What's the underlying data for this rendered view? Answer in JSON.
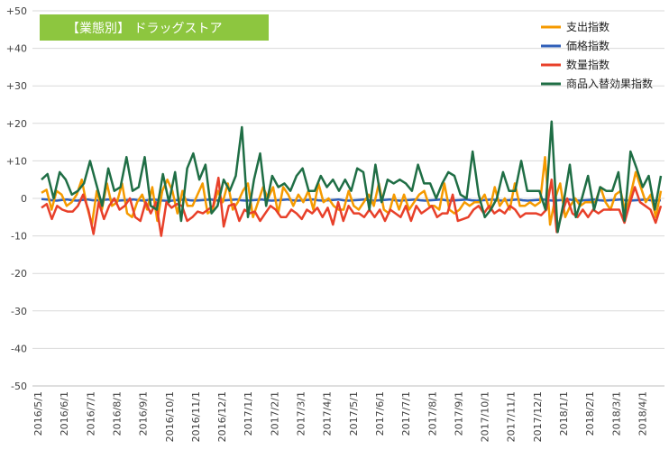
{
  "chart_data": {
    "type": "line",
    "title": "【業態別】 ドラッグストア",
    "ylim": [
      -50,
      50
    ],
    "y_ticks": [
      "+50",
      "+40",
      "+30",
      "+20",
      "+10",
      "0",
      "-10",
      "-20",
      "-30",
      "-40",
      "-50"
    ],
    "y_tick_values": [
      50,
      40,
      30,
      20,
      10,
      0,
      -10,
      -20,
      -30,
      -40,
      -50
    ],
    "x_tick_labels": [
      "2016/5/1",
      "2016/6/1",
      "2016/7/1",
      "2016/8/1",
      "2016/9/1",
      "2016/10/1",
      "2016/11/1",
      "2016/12/1",
      "2017/1/1",
      "2017/2/1",
      "2017/3/1",
      "2017/4/1",
      "2017/5/1",
      "2017/6/1",
      "2017/7/1",
      "2017/8/1",
      "2017/9/1",
      "2017/10/1",
      "2017/11/1",
      "2017/12/1",
      "2018/1/1",
      "2018/2/1",
      "2018/3/1",
      "2018/4/1"
    ],
    "grid": "horizontal",
    "legend_position": "top-right",
    "colors": {
      "支出指数": "#f59a00",
      "価格指数": "#2f5fb8",
      "数量指数": "#e8402a",
      "商品入替効果指数": "#1f6e45"
    },
    "title_box_color": "#8dc63f",
    "series": [
      {
        "name": "支出指数",
        "values": [
          1.5,
          2.3,
          -3,
          2,
          1,
          -2,
          -1,
          1,
          5,
          -2,
          -7,
          2,
          -3,
          4,
          -2,
          -1,
          4,
          -4,
          -5,
          -1,
          1,
          -3,
          3,
          -6,
          2,
          5,
          2,
          -4,
          2,
          -2,
          -2,
          1,
          4,
          -4,
          -3,
          2,
          -1,
          4,
          -3,
          -1,
          2,
          4,
          -5,
          -1,
          3,
          0,
          3,
          -4,
          3,
          1,
          -2,
          1,
          -1,
          2,
          -3,
          4,
          -1,
          0,
          -2,
          -3,
          -3,
          2,
          -2,
          -3,
          -1,
          1,
          -2,
          4,
          -3,
          -4,
          1,
          -3,
          1,
          -3,
          -1,
          1,
          2,
          -2,
          -2,
          -3,
          4,
          -3,
          -4,
          -3,
          -1,
          -2,
          -1,
          -1,
          1,
          -3,
          3,
          -2,
          0,
          -3,
          4,
          -2,
          -2,
          -1,
          -2,
          -1,
          11,
          -7,
          0,
          4,
          -5,
          -2,
          0,
          -2,
          -1,
          -1,
          -1,
          3,
          -1,
          -3,
          1,
          2,
          -4,
          1,
          7,
          3,
          -1,
          1,
          -5,
          2
        ]
      },
      {
        "name": "価格指数",
        "values": [
          -0.2,
          -0.3,
          -0.5,
          -0.6,
          -0.4,
          -0.3,
          -0.5,
          -0.6,
          -0.4,
          -0.3,
          -0.5,
          -0.5,
          -0.4,
          -0.3,
          -0.5,
          -0.6,
          -0.5,
          -0.4,
          -0.3,
          -0.5,
          -0.6,
          -0.4,
          -0.3,
          -0.5,
          -0.6,
          -0.7,
          -0.5,
          -0.4,
          -0.3,
          -0.5,
          -0.6,
          -0.5,
          -0.4,
          -0.3,
          -0.5,
          -0.6,
          -0.5,
          -0.4,
          -0.3,
          -0.5,
          -0.6,
          -0.5,
          -0.4,
          -0.3,
          -0.5,
          -0.6,
          -0.5,
          -0.4,
          -0.3,
          -0.5,
          -0.6,
          -0.5,
          -0.4,
          -0.3,
          -0.5,
          -0.6,
          -0.5,
          -0.4,
          -0.3,
          -0.5,
          -0.6,
          -0.5,
          -0.4,
          -0.3,
          -0.5,
          -0.6,
          -0.5,
          -0.4,
          -0.3,
          -0.5,
          -0.6,
          -0.5,
          -0.4,
          -0.3,
          -0.5,
          -0.6,
          -0.5,
          -0.4,
          -0.3,
          -0.5,
          -0.6,
          -0.5,
          -0.4,
          -0.3,
          -0.5,
          -0.6,
          -0.5,
          -0.4,
          -0.3,
          -0.5,
          -0.6,
          -0.5,
          -0.4,
          -0.3,
          -0.5,
          -0.6,
          -0.5,
          -0.4,
          -0.3,
          -0.5,
          -0.6,
          -0.5,
          -0.4,
          -0.3,
          -0.5,
          -0.6,
          -0.5,
          -0.4,
          -0.3,
          -0.5,
          -0.6,
          -0.5,
          -0.4,
          -0.3,
          -0.5,
          -0.6,
          -0.5,
          -0.4,
          -0.3,
          -0.5,
          -0.6,
          -0.5
        ]
      },
      {
        "name": "数量指数",
        "values": [
          -2.5,
          -1.5,
          -5.5,
          -2,
          -3,
          -3.5,
          -3.5,
          -2,
          1,
          -3,
          -9.5,
          -1,
          -5.5,
          -2,
          0,
          -3,
          -2,
          0,
          -5,
          -6,
          -1,
          -4,
          -1,
          -10,
          -1,
          -2.5,
          -1.5,
          -2,
          -6,
          -5,
          -3.5,
          -4,
          -3,
          -2,
          5.5,
          -7.5,
          -2,
          -1.5,
          -6,
          -3,
          -4,
          -3.5,
          -6,
          -4,
          -2,
          -3,
          -5,
          -5,
          -3,
          -4,
          -5.5,
          -3,
          -4,
          -2.5,
          -5,
          -2.5,
          -7,
          -1,
          -6,
          -2,
          -4,
          -4,
          -5,
          -3,
          -5,
          -3,
          -6,
          -3,
          -4,
          -5,
          -2,
          -6,
          -2,
          -4,
          -3,
          -2,
          -5,
          -4,
          -4,
          1,
          -6,
          -5.5,
          -5,
          -3,
          -2,
          -4,
          -2,
          -4,
          -3,
          -4,
          -2,
          -3,
          -5,
          -4,
          -4,
          -4,
          -4.5,
          -3,
          5,
          -9,
          -4,
          0,
          -4,
          -5,
          -3,
          -5,
          -3,
          -4,
          -3,
          -3,
          -3,
          -3,
          -6.5,
          -1.5,
          3,
          -1,
          -2,
          -3,
          -6.5,
          -2
        ]
      },
      {
        "name": "商品入替効果指数",
        "values": [
          5,
          6.5,
          0,
          7,
          5,
          1,
          2,
          4,
          10,
          4,
          -2,
          8,
          2,
          3,
          11,
          2,
          3,
          11,
          -2,
          -3,
          6.5,
          -1,
          7,
          -6,
          8,
          12,
          5,
          9,
          -4,
          -2,
          5,
          2,
          6,
          19,
          -5,
          5,
          12,
          -2,
          6,
          3,
          4,
          2,
          6,
          8,
          2,
          2,
          6,
          3,
          5,
          2,
          5,
          2,
          8,
          7,
          -3,
          9,
          -1,
          5,
          4,
          5,
          4,
          2,
          9,
          4,
          4,
          0,
          4,
          7,
          6,
          1,
          0,
          12.5,
          1,
          -5,
          -3,
          0,
          7,
          2,
          2,
          10,
          2,
          2,
          2,
          -3,
          20.5,
          -9,
          -1,
          9,
          -5,
          0,
          6,
          -3,
          3,
          2,
          2,
          7,
          -6,
          12.5,
          8,
          3,
          6,
          -3,
          6
        ]
      }
    ]
  }
}
